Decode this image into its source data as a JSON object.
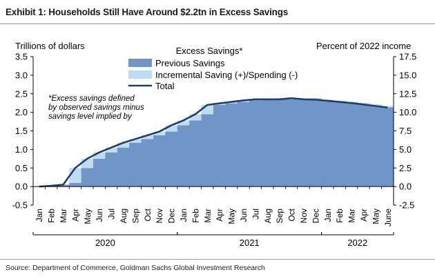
{
  "header": {
    "title": "Exhibit 1: Households Still Have Around $2.2tn in Excess Savings"
  },
  "footer": {
    "source": "Source: Department of Commerce, Goldman Sachs Global Investment Research"
  },
  "chart_data": {
    "type": "area",
    "title": "Excess Savings*",
    "left_axis_label": "Trillions of dollars",
    "right_axis_label": "Percent of 2022 income",
    "ylim_left": [
      -0.5,
      3.5
    ],
    "yticks_left": [
      "-0.5",
      "0.0",
      "0.5",
      "1.0",
      "1.5",
      "2.0",
      "2.5",
      "3.0",
      "3.5"
    ],
    "yticks_left_values": [
      -0.5,
      0.0,
      0.5,
      1.0,
      1.5,
      2.0,
      2.5,
      3.0,
      3.5
    ],
    "yticks_right": [
      "-2.5",
      "0.0",
      "2.5",
      "5.0",
      "7.5",
      "10.0",
      "12.5",
      "15.0",
      "17.5"
    ],
    "yticks_right_values": [
      -0.5,
      0.0,
      0.5,
      1.0,
      1.5,
      2.0,
      2.5,
      3.0,
      3.5
    ],
    "categories": [
      "Jan",
      "Feb",
      "Mar",
      "Apr",
      "May",
      "Jun",
      "Jul",
      "Aug",
      "Sep",
      "Oct",
      "Nov",
      "Dec",
      "Jan",
      "Feb",
      "Mar",
      "Apr",
      "May",
      "Jun",
      "Jul",
      "Aug",
      "Sep",
      "Oct",
      "Nov",
      "Dec",
      "Jan",
      "Feb",
      "Mar",
      "Apr",
      "May",
      "June"
    ],
    "years": [
      {
        "label": "2020",
        "start": 0,
        "end": 12
      },
      {
        "label": "2021",
        "start": 12,
        "end": 24
      },
      {
        "label": "2022",
        "start": 24,
        "end": 30
      }
    ],
    "series": [
      {
        "name": "Previous Savings",
        "color": "#7096c8",
        "values": [
          0.0,
          0.02,
          0.05,
          0.1,
          0.5,
          0.75,
          0.92,
          1.05,
          1.18,
          1.28,
          1.38,
          1.48,
          1.65,
          1.78,
          1.95,
          2.2,
          2.24,
          2.28,
          2.32,
          2.35,
          2.35,
          2.35,
          2.35,
          2.38,
          2.34,
          2.31,
          2.28,
          2.25,
          2.21,
          2.17
        ]
      },
      {
        "name": "Incremental Saving (+)/Spending (-)",
        "color": "#c0dcf3",
        "values": [
          0.0,
          0.0,
          0.0,
          0.4,
          0.25,
          0.17,
          0.13,
          0.13,
          0.1,
          0.1,
          0.1,
          0.17,
          0.13,
          0.17,
          0.25,
          0.04,
          0.04,
          0.04,
          0.03,
          0.0,
          0.0,
          0.03,
          0.0,
          -0.04,
          -0.03,
          -0.03,
          -0.03,
          -0.04,
          -0.04,
          -0.04
        ]
      },
      {
        "name": "Total",
        "color": "#1d3f6f",
        "values": [
          0.0,
          0.02,
          0.05,
          0.5,
          0.75,
          0.92,
          1.05,
          1.18,
          1.28,
          1.38,
          1.48,
          1.65,
          1.78,
          1.95,
          2.2,
          2.24,
          2.28,
          2.32,
          2.35,
          2.35,
          2.35,
          2.38,
          2.35,
          2.34,
          2.31,
          2.28,
          2.25,
          2.21,
          2.17,
          2.13
        ]
      }
    ],
    "annotation": [
      "*Excess savings defined",
      "by observed savings minus",
      "savings level implied by"
    ],
    "legend_position": "top-center",
    "grid": false
  }
}
